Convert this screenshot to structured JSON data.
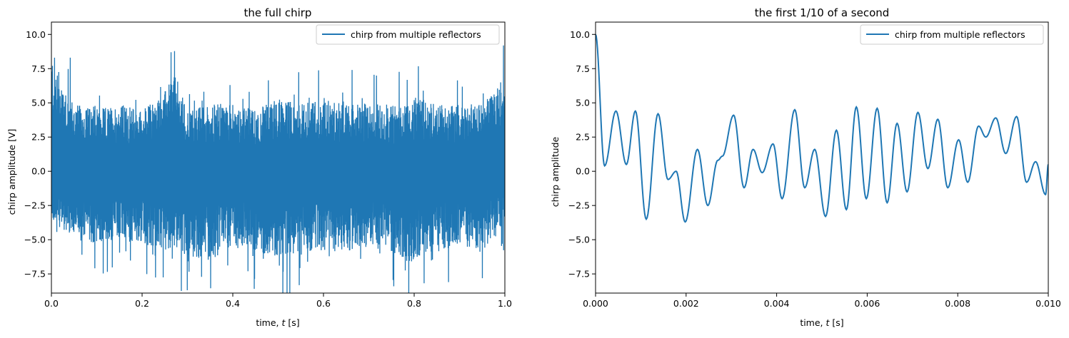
{
  "chart_data": [
    {
      "type": "line",
      "title": "the full chirp",
      "xlabel": "time, t [s]",
      "ylabel": "chirp amplitude [V]",
      "xlim": [
        0,
        1
      ],
      "ylim": [
        -8.9,
        10.9
      ],
      "xticks": [
        "0.0",
        "0.2",
        "0.4",
        "0.6",
        "0.8",
        "1.0"
      ],
      "yticks": [
        "-7.5",
        "-5.0",
        "-2.5",
        "0.0",
        "2.5",
        "5.0",
        "7.5",
        "10.0"
      ],
      "grid": false,
      "legend": "top-right",
      "series": [
        {
          "name": "chirp from multiple reflectors",
          "color": "#1f77b4",
          "note_values": "dense noise-like chirp; envelope values (approx.) read from plot",
          "x": [
            0.0,
            0.05,
            0.1,
            0.15,
            0.2,
            0.25,
            0.27,
            0.3,
            0.35,
            0.4,
            0.45,
            0.5,
            0.55,
            0.6,
            0.65,
            0.7,
            0.75,
            0.8,
            0.85,
            0.9,
            0.95,
            1.0
          ],
          "upper": [
            10.0,
            5.5,
            5.0,
            5.5,
            5.0,
            6.5,
            8.2,
            5.0,
            5.5,
            5.5,
            5.0,
            6.0,
            5.5,
            6.0,
            5.5,
            5.5,
            5.5,
            6.0,
            5.5,
            5.5,
            5.5,
            8.0
          ],
          "lower": [
            -4.0,
            -5.5,
            -6.0,
            -5.5,
            -6.0,
            -6.5,
            -6.0,
            -7.0,
            -7.3,
            -6.0,
            -6.5,
            -7.0,
            -6.5,
            -6.5,
            -6.5,
            -6.0,
            -6.5,
            -7.7,
            -6.5,
            -6.0,
            -6.5,
            -4.5
          ]
        }
      ]
    },
    {
      "type": "line",
      "title": "the first 1/10 of a second",
      "xlabel": "time, t [s]",
      "ylabel": "chirp amplitude",
      "xlim": [
        0,
        0.01
      ],
      "ylim": [
        -8.9,
        10.9
      ],
      "xticks": [
        "0.000",
        "0.002",
        "0.004",
        "0.006",
        "0.008",
        "0.010"
      ],
      "yticks": [
        "-7.5",
        "-5.0",
        "-2.5",
        "0.0",
        "2.5",
        "5.0",
        "7.5",
        "10.0"
      ],
      "grid": false,
      "legend": "top-right",
      "series": [
        {
          "name": "chirp from multiple reflectors",
          "color": "#1f77b4",
          "x": [
            0.0,
            0.0002,
            0.00045,
            0.00068,
            0.00088,
            0.00112,
            0.00138,
            0.0016,
            0.00178,
            0.00198,
            0.00225,
            0.00248,
            0.0027,
            0.0028,
            0.00305,
            0.00328,
            0.00348,
            0.00368,
            0.00392,
            0.00412,
            0.0044,
            0.00462,
            0.00484,
            0.00508,
            0.00532,
            0.00554,
            0.00576,
            0.00598,
            0.00622,
            0.00644,
            0.00666,
            0.00688,
            0.00712,
            0.00734,
            0.00756,
            0.00778,
            0.00802,
            0.00822,
            0.00846,
            0.00862,
            0.00884,
            0.00906,
            0.0093,
            0.00952,
            0.00972,
            0.00994,
            0.01
          ],
          "y": [
            10.0,
            0.4,
            4.4,
            0.5,
            4.4,
            -3.5,
            4.2,
            -0.6,
            -0.0,
            -3.7,
            1.6,
            -2.5,
            0.8,
            1.1,
            4.1,
            -1.2,
            1.6,
            -0.1,
            2.0,
            -2.0,
            4.5,
            -1.2,
            1.6,
            -3.3,
            3.0,
            -2.8,
            4.7,
            -2.0,
            4.6,
            -2.3,
            3.5,
            -1.5,
            4.3,
            0.2,
            3.8,
            -1.2,
            2.3,
            -0.8,
            3.3,
            2.5,
            3.9,
            1.3,
            4.0,
            -0.8,
            0.7,
            -1.7,
            0.5
          ]
        }
      ]
    }
  ]
}
